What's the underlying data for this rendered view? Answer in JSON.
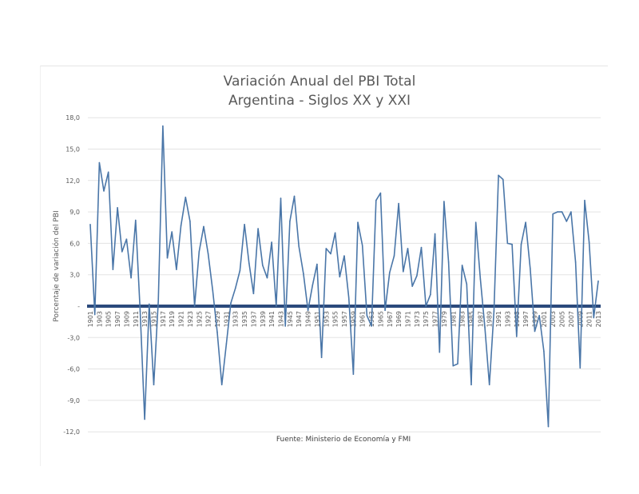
{
  "chart_data": {
    "type": "line",
    "title": "Variación Anual del PBI Total",
    "subtitle": "Argentina - Siglos XX y XXI",
    "xlabel": "",
    "ylabel": "Porcentaje de variación del PBI",
    "source": "Fuente: Ministerio de Economía y FMI",
    "ylim": [
      -12,
      18
    ],
    "yticks": [
      18,
      15,
      12,
      9,
      6,
      3,
      0,
      -3,
      -6,
      -9,
      -12
    ],
    "ytick_labels": [
      "18,0",
      "15,0",
      "12,0",
      "9,0",
      "6,0",
      "3,0",
      "-",
      "-3,0",
      "-6,0",
      "-9,0",
      "-12,0"
    ],
    "x_start": 1901,
    "x_end": 2013,
    "xtick_step": 2,
    "grid": true,
    "series": [
      {
        "name": "Variación anual del PBI",
        "color": "#4a76a8",
        "values": [
          7.8,
          -0.8,
          13.7,
          11.0,
          12.8,
          3.5,
          9.4,
          5.2,
          6.4,
          2.7,
          8.2,
          -0.5,
          -10.8,
          0.2,
          -7.5,
          0.5,
          17.2,
          4.6,
          7.1,
          3.5,
          7.7,
          10.4,
          8.1,
          0.0,
          5.2,
          7.6,
          5.0,
          1.5,
          -2.5,
          -7.5,
          -3.6,
          0.3,
          1.7,
          3.4,
          7.8,
          4.1,
          1.2,
          7.4,
          3.9,
          2.7,
          6.1,
          0.0,
          10.3,
          -1.9,
          8.1,
          10.5,
          5.7,
          3.1,
          -0.4,
          2.0,
          4.0,
          -4.9,
          5.5,
          5.0,
          7.0,
          2.8,
          4.8,
          0.8,
          -6.5,
          8.0,
          5.8,
          -0.9,
          -1.9,
          10.1,
          10.8,
          -0.4,
          3.2,
          4.8,
          9.8,
          3.3,
          5.5,
          1.9,
          2.9,
          5.6,
          0.0,
          1.1,
          6.9,
          -4.4,
          10.0,
          4.2,
          -5.7,
          -5.5,
          3.9,
          2.1,
          -7.5,
          8.0,
          2.6,
          -2.0,
          -7.5,
          -0.5,
          12.5,
          12.1,
          6.0,
          5.9,
          -2.9,
          5.9,
          8.0,
          3.6,
          -2.4,
          -0.9,
          -4.3,
          -11.5,
          8.8,
          9.0,
          9.0,
          8.1,
          9.0,
          4.2,
          -5.9,
          10.1,
          6.1,
          -1.1,
          2.4
        ]
      }
    ],
    "zero_line_color": "#2b4a7c"
  }
}
